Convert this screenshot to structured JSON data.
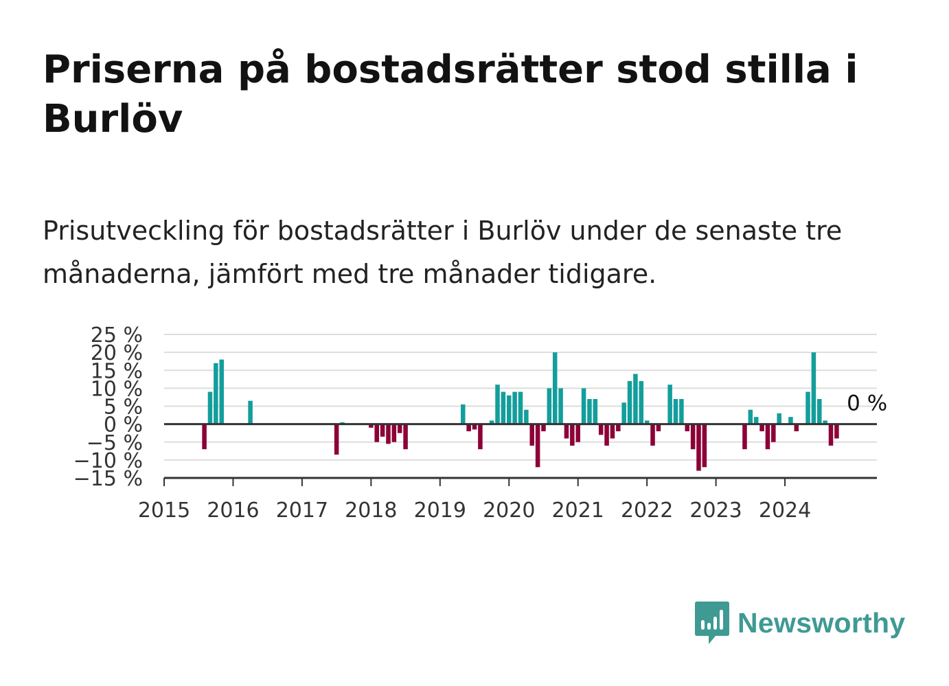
{
  "title": "Priserna på bostadsrätter stod stilla i Burlöv",
  "subtitle": "Prisutveckling för bostadsrätter i Burlöv under de senaste tre månaderna, jämfört med tre månader tidigare.",
  "brand": {
    "name": "Newsworthy",
    "color": "#3f9a93",
    "icon": "newsworthy-logo-icon"
  },
  "colors": {
    "positive": "#139e9c",
    "negative": "#8c0037",
    "grid": "#dddddd",
    "axis": "#333333"
  },
  "chart_data": {
    "type": "bar",
    "x_start": "2015-01",
    "x_end": "2025-05",
    "x_ticks": [
      "2015",
      "2016",
      "2017",
      "2018",
      "2019",
      "2020",
      "2021",
      "2022",
      "2023",
      "2024"
    ],
    "y_ticks": [
      25,
      20,
      15,
      10,
      5,
      0,
      -5,
      -10,
      -15
    ],
    "y_tick_labels": [
      "25 %",
      "20 %",
      "15 %",
      "10 %",
      "5 %",
      "0 %",
      "−5 %",
      "−10 %",
      "−15 %"
    ],
    "ylim": [
      -15,
      25
    ],
    "ylabel": "",
    "xlabel": "",
    "grid": true,
    "annotation": {
      "label": "0 %",
      "date": "2024-12"
    },
    "series": [
      {
        "values": [
          {
            "date": "2015-08",
            "value": -7
          },
          {
            "date": "2015-09",
            "value": 9
          },
          {
            "date": "2015-10",
            "value": 17
          },
          {
            "date": "2015-11",
            "value": 18
          },
          {
            "date": "2016-04",
            "value": 6.5
          },
          {
            "date": "2017-07",
            "value": -8.5
          },
          {
            "date": "2017-08",
            "value": 0.5
          },
          {
            "date": "2018-01",
            "value": -1
          },
          {
            "date": "2018-02",
            "value": -5
          },
          {
            "date": "2018-03",
            "value": -3.5
          },
          {
            "date": "2018-04",
            "value": -5.5
          },
          {
            "date": "2018-05",
            "value": -5
          },
          {
            "date": "2018-06",
            "value": -2.5
          },
          {
            "date": "2018-07",
            "value": -7
          },
          {
            "date": "2019-05",
            "value": 5.5
          },
          {
            "date": "2019-06",
            "value": -2
          },
          {
            "date": "2019-07",
            "value": -1.5
          },
          {
            "date": "2019-08",
            "value": -7
          },
          {
            "date": "2019-10",
            "value": 1
          },
          {
            "date": "2019-11",
            "value": 11
          },
          {
            "date": "2019-12",
            "value": 9
          },
          {
            "date": "2020-01",
            "value": 8
          },
          {
            "date": "2020-02",
            "value": 9
          },
          {
            "date": "2020-03",
            "value": 9
          },
          {
            "date": "2020-04",
            "value": 4
          },
          {
            "date": "2020-05",
            "value": -6
          },
          {
            "date": "2020-06",
            "value": -12
          },
          {
            "date": "2020-07",
            "value": -2
          },
          {
            "date": "2020-08",
            "value": 10
          },
          {
            "date": "2020-09",
            "value": 20
          },
          {
            "date": "2020-10",
            "value": 10
          },
          {
            "date": "2020-11",
            "value": -4
          },
          {
            "date": "2020-12",
            "value": -6
          },
          {
            "date": "2021-01",
            "value": -5
          },
          {
            "date": "2021-02",
            "value": 10
          },
          {
            "date": "2021-03",
            "value": 7
          },
          {
            "date": "2021-04",
            "value": 7
          },
          {
            "date": "2021-05",
            "value": -3
          },
          {
            "date": "2021-06",
            "value": -6
          },
          {
            "date": "2021-07",
            "value": -4
          },
          {
            "date": "2021-08",
            "value": -2
          },
          {
            "date": "2021-09",
            "value": 6
          },
          {
            "date": "2021-10",
            "value": 12
          },
          {
            "date": "2021-11",
            "value": 14
          },
          {
            "date": "2021-12",
            "value": 12
          },
          {
            "date": "2022-01",
            "value": 1
          },
          {
            "date": "2022-02",
            "value": -6
          },
          {
            "date": "2022-03",
            "value": -2
          },
          {
            "date": "2022-05",
            "value": 11
          },
          {
            "date": "2022-06",
            "value": 7
          },
          {
            "date": "2022-07",
            "value": 7
          },
          {
            "date": "2022-08",
            "value": -2
          },
          {
            "date": "2022-09",
            "value": -7
          },
          {
            "date": "2022-10",
            "value": -13
          },
          {
            "date": "2022-11",
            "value": -12
          },
          {
            "date": "2023-06",
            "value": -7
          },
          {
            "date": "2023-07",
            "value": 4
          },
          {
            "date": "2023-08",
            "value": 2
          },
          {
            "date": "2023-09",
            "value": -2
          },
          {
            "date": "2023-10",
            "value": -7
          },
          {
            "date": "2023-11",
            "value": -5
          },
          {
            "date": "2023-12",
            "value": 3
          },
          {
            "date": "2024-02",
            "value": 2
          },
          {
            "date": "2024-03",
            "value": -2
          },
          {
            "date": "2024-05",
            "value": 9
          },
          {
            "date": "2024-06",
            "value": 20
          },
          {
            "date": "2024-07",
            "value": 7
          },
          {
            "date": "2024-08",
            "value": 1
          },
          {
            "date": "2024-09",
            "value": -6
          },
          {
            "date": "2024-10",
            "value": -4
          }
        ]
      }
    ]
  }
}
